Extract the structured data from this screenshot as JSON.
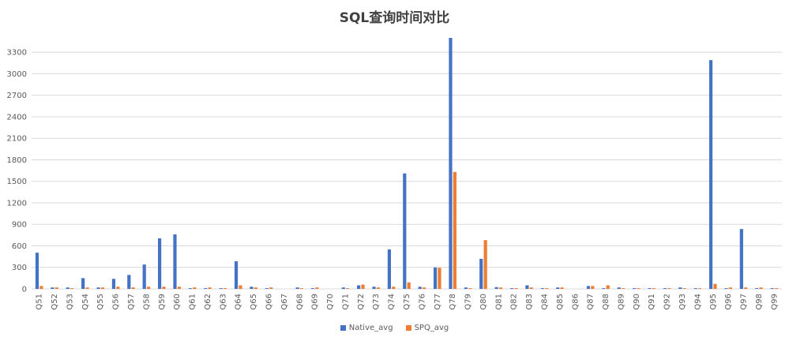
{
  "chart_data": {
    "type": "bar",
    "title": "SQL查询时间对比",
    "xlabel": "",
    "ylabel": "",
    "ylim": [
      0,
      3500
    ],
    "yticks": [
      0,
      300,
      600,
      900,
      1200,
      1500,
      1800,
      2100,
      2400,
      2700,
      3000,
      3300
    ],
    "grid": true,
    "legend_position": "bottom",
    "categories": [
      "Q51",
      "Q52",
      "Q53",
      "Q54",
      "Q55",
      "Q56",
      "Q57",
      "Q58",
      "Q59",
      "Q60",
      "Q61",
      "Q62",
      "Q63",
      "Q64",
      "Q65",
      "Q66",
      "Q67",
      "Q68",
      "Q69",
      "Q70",
      "Q71",
      "Q72",
      "Q73",
      "Q74",
      "Q75",
      "Q76",
      "Q77",
      "Q78",
      "Q79",
      "Q80",
      "Q81",
      "Q82",
      "Q83",
      "Q84",
      "Q85",
      "Q86",
      "Q87",
      "Q88",
      "Q89",
      "Q90",
      "Q91",
      "Q92",
      "Q93",
      "Q94",
      "Q95",
      "Q96",
      "Q97",
      "Q98",
      "Q99"
    ],
    "series": [
      {
        "name": "Native_avg",
        "color": "#4472C4",
        "values": [
          505,
          20,
          20,
          150,
          20,
          140,
          195,
          340,
          705,
          760,
          10,
          10,
          10,
          385,
          30,
          10,
          0,
          20,
          10,
          0,
          20,
          50,
          30,
          550,
          1610,
          30,
          300,
          3500,
          20,
          420,
          25,
          10,
          50,
          10,
          20,
          0,
          40,
          10,
          20,
          10,
          10,
          10,
          20,
          10,
          3190,
          10,
          835,
          10,
          10
        ]
      },
      {
        "name": "SPQ_avg",
        "color": "#ED7D31",
        "values": [
          40,
          20,
          10,
          20,
          20,
          30,
          20,
          30,
          30,
          30,
          20,
          20,
          10,
          50,
          20,
          20,
          0,
          10,
          20,
          0,
          10,
          60,
          20,
          30,
          90,
          20,
          295,
          1630,
          10,
          680,
          20,
          10,
          20,
          10,
          20,
          0,
          40,
          50,
          10,
          10,
          10,
          10,
          10,
          10,
          70,
          20,
          20,
          20,
          10
        ]
      }
    ]
  }
}
